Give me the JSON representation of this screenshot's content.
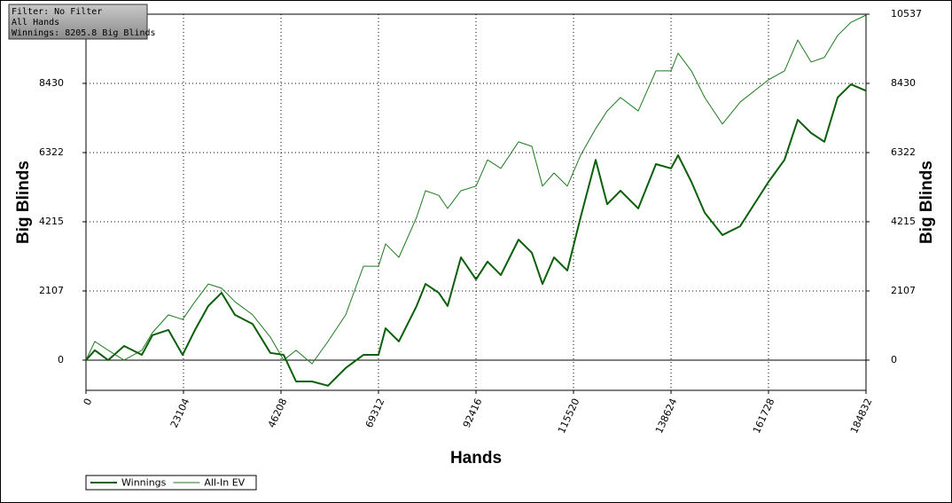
{
  "chart_data": {
    "type": "line",
    "x_label": "Hands",
    "y_label": "Big Blinds",
    "y2_label": "Big Blinds",
    "info_box": [
      "Filter: No Filter",
      "All Hands",
      "Winnings: 8205.8 Big Blinds"
    ],
    "xlim": [
      0,
      184832
    ],
    "xticks": [
      0,
      23104,
      46208,
      69312,
      92416,
      115520,
      138624,
      161728,
      184832
    ],
    "ylim": [
      -920,
      10537
    ],
    "yticks": [
      0,
      2107,
      4215,
      6322,
      8430,
      10537
    ],
    "y2lim": [
      -920,
      10537
    ],
    "y2ticks": [
      0,
      2107,
      4215,
      6322,
      8430,
      10537
    ],
    "grid": true,
    "legend": "bottom-left",
    "x": [
      0,
      2100,
      5251,
      9032,
      13233,
      15754,
      19533,
      22894,
      25835,
      28985,
      32136,
      35287,
      39488,
      43688,
      46839,
      49780,
      53560,
      57341,
      61542,
      65742,
      69313,
      70994,
      74144,
      78345,
      80445,
      83596,
      85696,
      88847,
      92418,
      95148,
      98299,
      102500,
      105650,
      108171,
      110901,
      114052,
      117203,
      120773,
      123504,
      126654,
      130855,
      135056,
      138626,
      140307,
      143457,
      146608,
      150809,
      155010,
      161731,
      165511,
      168662,
      171813,
      174963,
      178114,
      181265,
      184832
    ],
    "series": [
      {
        "name": "Winnings",
        "color": "#0a5f0a",
        "width": 2,
        "values": [
          0,
          300,
          0,
          430,
          160,
          760,
          920,
          160,
          920,
          1650,
          2050,
          1380,
          1100,
          220,
          160,
          -650,
          -650,
          -780,
          -240,
          160,
          160,
          970,
          570,
          1650,
          2320,
          2050,
          1650,
          3130,
          2460,
          3000,
          2590,
          3670,
          3270,
          2320,
          3130,
          2730,
          4350,
          6100,
          4750,
          5160,
          4620,
          5970,
          5840,
          6240,
          5430,
          4490,
          3810,
          4080,
          5430,
          6100,
          7320,
          6920,
          6650,
          8000,
          8400,
          8206
        ]
      },
      {
        "name": "All-In EV",
        "color": "#1e7a1e",
        "width": 1,
        "values": [
          0,
          570,
          300,
          0,
          300,
          840,
          1380,
          1240,
          1780,
          2320,
          2190,
          1780,
          1380,
          700,
          0,
          300,
          -110,
          570,
          1380,
          2860,
          2860,
          3540,
          3130,
          4350,
          5160,
          5020,
          4620,
          5160,
          5300,
          6100,
          5840,
          6650,
          6510,
          5300,
          5700,
          5300,
          6240,
          7050,
          7590,
          8000,
          7590,
          8810,
          8810,
          9350,
          8810,
          8000,
          7190,
          7860,
          8540,
          8810,
          9750,
          9080,
          9220,
          9890,
          10290,
          10510
        ]
      }
    ]
  }
}
